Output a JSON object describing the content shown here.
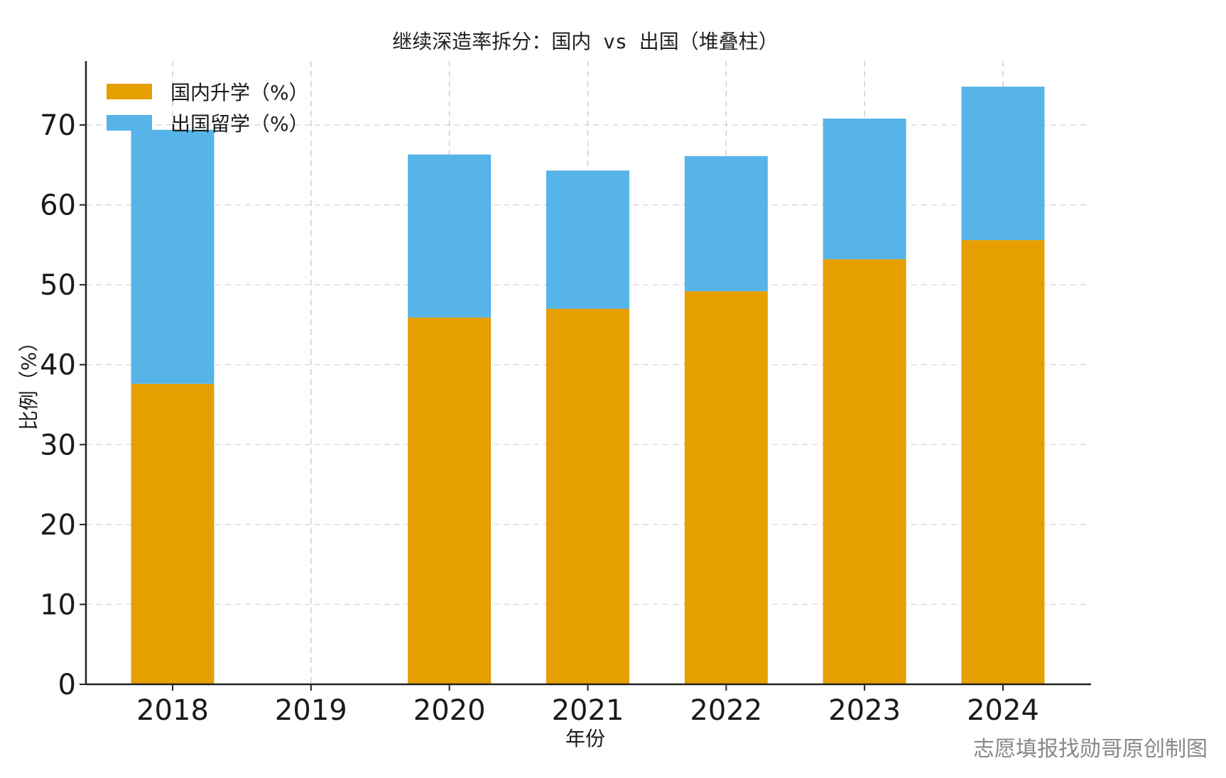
{
  "chart_data": {
    "type": "bar",
    "stacked": true,
    "title": "继续深造率拆分：国内 vs 出国（堆叠柱）",
    "xlabel": "年份",
    "ylabel": "比例（%）",
    "categories": [
      "2018",
      "2019",
      "2020",
      "2021",
      "2022",
      "2023",
      "2024"
    ],
    "series": [
      {
        "name": "国内升学（%）",
        "color": "#E69F00",
        "values": [
          37.6,
          null,
          45.9,
          47.0,
          49.2,
          53.2,
          55.6
        ]
      },
      {
        "name": "出国留学（%）",
        "color": "#56B4E9",
        "values": [
          31.8,
          null,
          20.4,
          17.3,
          16.9,
          17.6,
          19.2
        ]
      }
    ],
    "ylim": [
      0,
      78
    ],
    "yticks": [
      0,
      10,
      20,
      30,
      40,
      50,
      60,
      70
    ],
    "grid": true,
    "legend": "top-left"
  },
  "watermark": "志愿填报找勋哥原创制图"
}
